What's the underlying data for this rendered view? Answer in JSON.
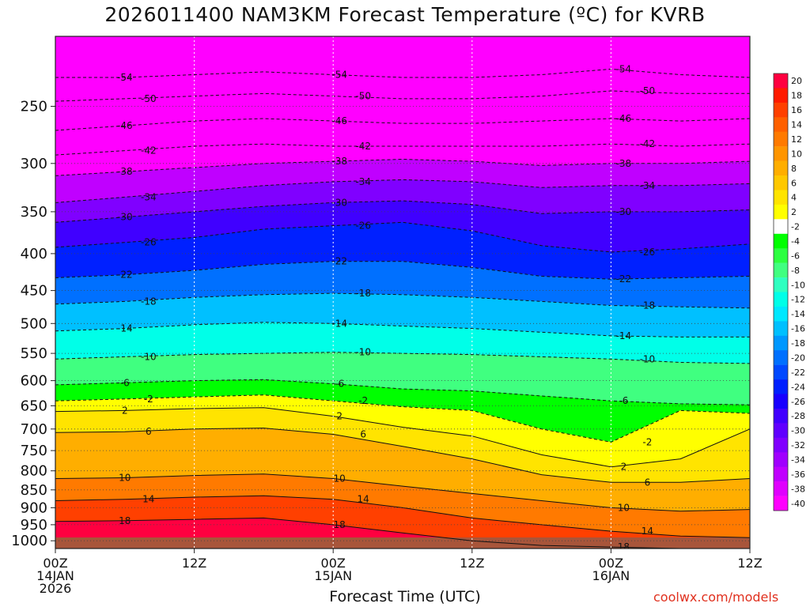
{
  "chart_data": {
    "type": "heatmap",
    "title": "2026011400 NAM3KM Forecast Temperature (ºC) for KVRB",
    "xlabel": "Forecast Time (UTC)",
    "ylabel": "",
    "credit": "coolwx.com/models",
    "x_ticks": [
      {
        "hour": 0,
        "lines": [
          "00Z",
          "14JAN",
          "2026"
        ]
      },
      {
        "hour": 12,
        "lines": [
          "12Z"
        ]
      },
      {
        "hour": 24,
        "lines": [
          "00Z",
          "15JAN"
        ]
      },
      {
        "hour": 36,
        "lines": [
          "12Z"
        ]
      },
      {
        "hour": 48,
        "lines": [
          "00Z",
          "16JAN"
        ]
      },
      {
        "hour": 60,
        "lines": [
          "12Z"
        ]
      }
    ],
    "xlim": [
      0,
      60
    ],
    "y_scale": "log",
    "ylim": [
      1025,
      200
    ],
    "y_ticks": [
      250,
      300,
      350,
      400,
      450,
      500,
      550,
      600,
      650,
      700,
      750,
      800,
      850,
      900,
      950,
      1000
    ],
    "colorbar": {
      "levels": [
        20,
        18,
        16,
        14,
        12,
        10,
        8,
        6,
        4,
        2,
        -2,
        -4,
        -6,
        -8,
        -10,
        -12,
        -14,
        -16,
        -18,
        -20,
        -22,
        -24,
        -26,
        -28,
        -30,
        -32,
        -34,
        -36,
        -38,
        -40
      ],
      "colors": [
        "#ff0040",
        "#ff1a00",
        "#ff4000",
        "#ff6000",
        "#ff7a00",
        "#ff9500",
        "#ffae00",
        "#ffc800",
        "#ffe400",
        "#ffff00",
        "#ffffff",
        "#00ff00",
        "#2cff40",
        "#40ff80",
        "#2effc0",
        "#00ffe8",
        "#00e8ff",
        "#00c0ff",
        "#0098ff",
        "#0070ff",
        "#0048ff",
        "#0020ff",
        "#1800ff",
        "#4000ff",
        "#6000ff",
        "#8000ff",
        "#a000ff",
        "#c000ff",
        "#e000ff",
        "#ff00ff"
      ]
    },
    "isotherms": [
      {
        "label": "-54",
        "p": [
          228,
          228,
          226,
          224,
          226,
          228,
          228,
          226,
          222,
          226,
          228
        ]
      },
      {
        "label": "-50",
        "p": [
          246,
          244,
          242,
          240,
          242,
          244,
          244,
          242,
          238,
          240,
          240
        ]
      },
      {
        "label": "-46",
        "p": [
          270,
          266,
          262,
          260,
          262,
          264,
          264,
          262,
          260,
          262,
          260
        ]
      },
      {
        "label": "-42",
        "p": [
          292,
          288,
          284,
          282,
          284,
          284,
          284,
          284,
          282,
          284,
          282
        ]
      },
      {
        "label": "-38",
        "p": [
          312,
          308,
          304,
          300,
          298,
          296,
          298,
          302,
          300,
          300,
          298
        ]
      },
      {
        "label": "-34",
        "p": [
          340,
          334,
          328,
          322,
          318,
          316,
          318,
          324,
          322,
          322,
          320
        ]
      },
      {
        "label": "-30",
        "p": [
          362,
          356,
          350,
          344,
          340,
          338,
          342,
          352,
          350,
          350,
          348
        ]
      },
      {
        "label": "-26",
        "p": [
          392,
          386,
          380,
          370,
          366,
          362,
          372,
          390,
          398,
          394,
          388
        ]
      },
      {
        "label": "-22",
        "p": [
          432,
          428,
          422,
          414,
          410,
          410,
          418,
          430,
          434,
          432,
          430
        ]
      },
      {
        "label": "-18",
        "p": [
          470,
          466,
          460,
          456,
          454,
          456,
          460,
          466,
          472,
          474,
          476
        ]
      },
      {
        "label": "-14",
        "p": [
          512,
          508,
          502,
          498,
          500,
          504,
          508,
          514,
          520,
          522,
          522
        ]
      },
      {
        "label": "-10",
        "p": [
          560,
          556,
          552,
          550,
          548,
          550,
          552,
          556,
          560,
          566,
          568
        ]
      },
      {
        "label": "-6",
        "p": [
          608,
          604,
          600,
          598,
          606,
          616,
          620,
          630,
          640,
          646,
          648
        ]
      },
      {
        "label": "-2",
        "p": [
          640,
          636,
          632,
          628,
          640,
          652,
          660,
          700,
          730,
          660,
          666
        ]
      },
      {
        "label": "2",
        "p": [
          662,
          660,
          656,
          654,
          672,
          696,
          716,
          760,
          790,
          770,
          700
        ]
      },
      {
        "label": "6",
        "p": [
          708,
          706,
          700,
          698,
          712,
          740,
          770,
          810,
          830,
          830,
          820
        ]
      },
      {
        "label": "10",
        "p": [
          820,
          818,
          812,
          808,
          820,
          840,
          860,
          880,
          900,
          910,
          905
        ]
      },
      {
        "label": "14",
        "p": [
          880,
          876,
          870,
          866,
          876,
          900,
          930,
          950,
          970,
          985,
          990
        ]
      },
      {
        "label": "18",
        "p": [
          940,
          938,
          934,
          930,
          950,
          975,
          1000,
          1015,
          1020,
          1025,
          1025
        ]
      }
    ],
    "legend": "right",
    "grid": true
  }
}
